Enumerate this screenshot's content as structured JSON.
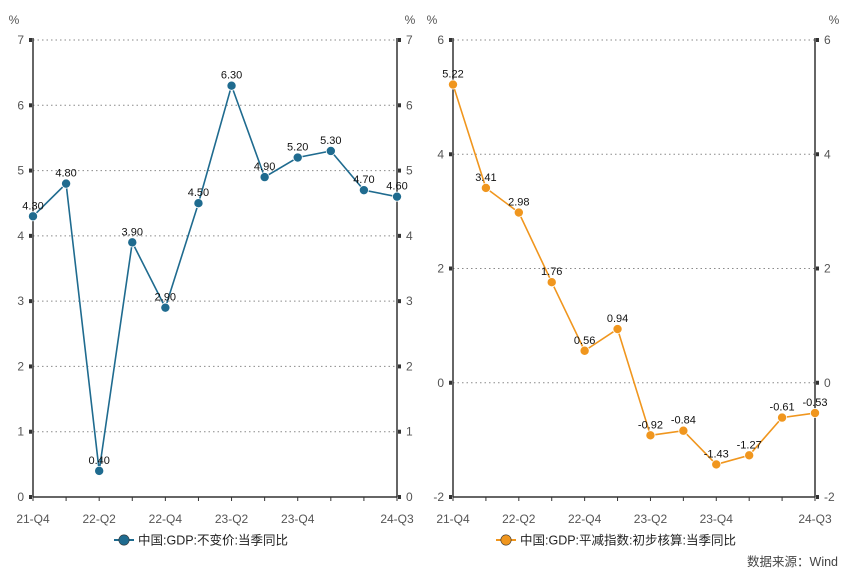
{
  "source": "数据来源：Wind",
  "chart_data": [
    {
      "type": "line",
      "x": [
        "21-Q4",
        "22-Q1",
        "22-Q2",
        "22-Q3",
        "22-Q4",
        "23-Q1",
        "23-Q2",
        "23-Q3",
        "23-Q4",
        "24-Q1",
        "24-Q2",
        "24-Q3"
      ],
      "x_tick_labels": [
        "21-Q4",
        "22-Q2",
        "22-Q4",
        "23-Q2",
        "23-Q4",
        "24-Q3"
      ],
      "series": [
        {
          "name": "中国:GDP:不变价:当季同比",
          "values": [
            4.3,
            4.8,
            0.4,
            3.9,
            2.9,
            4.5,
            6.3,
            4.9,
            5.2,
            5.3,
            4.7,
            4.6
          ],
          "labels": [
            "4.30",
            "4.80",
            "0.40",
            "3.90",
            "2.90",
            "4.50",
            "6.30",
            "4.90",
            "5.20",
            "5.30",
            "4.70",
            "4.60"
          ],
          "color": "#1f6b8f"
        }
      ],
      "y_unit": "%",
      "ylim": [
        0,
        7
      ],
      "yticks": [
        0,
        1,
        2,
        3,
        4,
        5,
        6,
        7
      ],
      "grid": true,
      "legend_position": "bottom"
    },
    {
      "type": "line",
      "x": [
        "21-Q4",
        "22-Q1",
        "22-Q2",
        "22-Q3",
        "22-Q4",
        "23-Q1",
        "23-Q2",
        "23-Q3",
        "23-Q4",
        "24-Q1",
        "24-Q2",
        "24-Q3"
      ],
      "x_tick_labels": [
        "21-Q4",
        "22-Q2",
        "22-Q4",
        "23-Q2",
        "23-Q4",
        "24-Q3"
      ],
      "series": [
        {
          "name": "中国:GDP:平减指数:初步核算:当季同比",
          "values": [
            5.22,
            3.41,
            2.98,
            1.76,
            0.56,
            0.94,
            -0.92,
            -0.84,
            -1.43,
            -1.27,
            -0.61,
            -0.53
          ],
          "labels": [
            "5.22",
            "3.41",
            "2.98",
            "1.76",
            "0.56",
            "0.94",
            "-0.92",
            "-0.84",
            "-1.43",
            "-1.27",
            "-0.61",
            "-0.53"
          ],
          "color": "#f0961e"
        }
      ],
      "y_unit": "%",
      "ylim": [
        -2,
        6
      ],
      "yticks": [
        -2,
        0,
        2,
        4,
        6
      ],
      "grid": true,
      "legend_position": "bottom"
    }
  ]
}
